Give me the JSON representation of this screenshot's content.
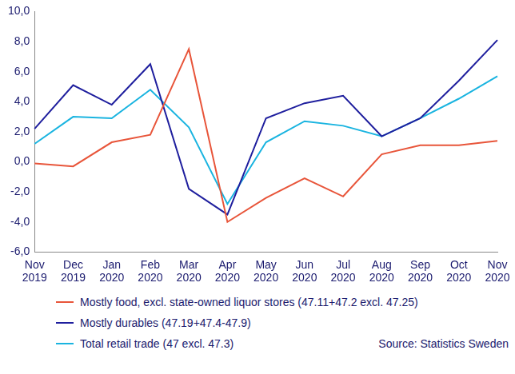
{
  "chart_data": {
    "type": "line",
    "source": "Source: Statistics Sweden",
    "categories": [
      "Nov 2019",
      "Dec 2019",
      "Jan 2020",
      "Feb 2020",
      "Mar 2020",
      "Apr 2020",
      "May 2020",
      "Jun 2020",
      "Jul 2020",
      "Aug 2020",
      "Sep 2020",
      "Oct 2020",
      "Nov 2020"
    ],
    "series": [
      {
        "name": "Mostly food, excl. state-owned liquor stores (47.11+47.2 excl. 47.25)",
        "color": "#e8553a",
        "values": [
          -0.1,
          -0.3,
          1.3,
          1.8,
          7.5,
          -4.0,
          -2.4,
          -1.1,
          -2.3,
          0.5,
          1.1,
          1.1,
          1.4
        ]
      },
      {
        "name": "Mostly durables (47.19+47.4-47.9)",
        "color": "#1f1f9e",
        "values": [
          2.2,
          5.1,
          3.8,
          6.5,
          -1.8,
          -3.5,
          2.9,
          3.9,
          4.4,
          1.7,
          2.9,
          5.4,
          8.1
        ]
      },
      {
        "name": "Total retail trade (47 excl. 47.3)",
        "color": "#1ab4e0",
        "values": [
          1.2,
          3.0,
          2.9,
          4.8,
          2.3,
          -2.8,
          1.3,
          2.7,
          2.4,
          1.7,
          2.9,
          4.2,
          5.7
        ]
      }
    ],
    "ylim": [
      -6,
      10
    ],
    "yticks": [
      {
        "value": -6,
        "label": "-6,0"
      },
      {
        "value": -4,
        "label": "-4,0"
      },
      {
        "value": -2,
        "label": "-2,0"
      },
      {
        "value": 0,
        "label": "0,0"
      },
      {
        "value": 2,
        "label": "2,0"
      },
      {
        "value": 4,
        "label": "4,0"
      },
      {
        "value": 6,
        "label": "6,0"
      },
      {
        "value": 8,
        "label": "8,0"
      },
      {
        "value": 10,
        "label": "10,0"
      }
    ],
    "grid": false,
    "legend": "bottom"
  }
}
